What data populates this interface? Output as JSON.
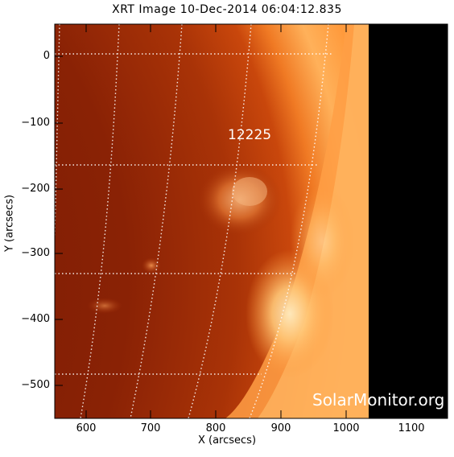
{
  "title": "XRT Image 10-Dec-2014 06:04:12.835",
  "x_axis_label": "X (arcsecs)",
  "y_axis_label": "Y (arcsecs)",
  "x_ticks": [
    "600",
    "700",
    "800",
    "900",
    "1000",
    "1100"
  ],
  "y_ticks": [
    "0",
    "−100",
    "−200",
    "−300",
    "−400",
    "−500"
  ],
  "active_region_label": "12225",
  "watermark": "SolarMonitor.org",
  "colors": {
    "disk_dark": "#7a1a04",
    "disk_mid": "#a42f06",
    "limb_bright": "#ff9a3c",
    "limb_glow": "#ffd08a",
    "space": "#000000"
  }
}
